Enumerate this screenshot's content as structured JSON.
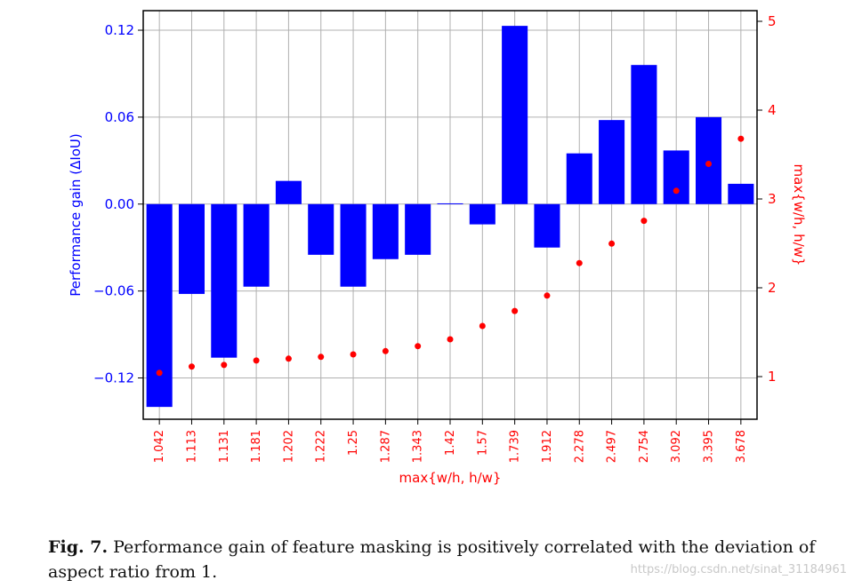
{
  "chart_data": {
    "type": "bar",
    "categories": [
      "1.042",
      "1.113",
      "1.131",
      "1.181",
      "1.202",
      "1.222",
      "1.25",
      "1.287",
      "1.343",
      "1.42",
      "1.57",
      "1.739",
      "1.912",
      "2.278",
      "2.497",
      "2.754",
      "3.092",
      "3.395",
      "3.678"
    ],
    "series": [
      {
        "name": "Performance gain (ΔIoU)",
        "type": "bar",
        "axis": "left",
        "color": "#0000ff",
        "values": [
          -0.14,
          -0.062,
          -0.106,
          -0.057,
          0.016,
          -0.035,
          -0.057,
          -0.038,
          -0.035,
          0.0005,
          -0.014,
          0.123,
          -0.03,
          0.035,
          0.058,
          0.096,
          0.037,
          0.06,
          0.014
        ]
      },
      {
        "name": "max{w/h, h/w}",
        "type": "scatter",
        "axis": "right",
        "color": "#ff0000",
        "values": [
          1.042,
          1.113,
          1.131,
          1.181,
          1.202,
          1.222,
          1.25,
          1.287,
          1.343,
          1.42,
          1.57,
          1.739,
          1.912,
          2.278,
          2.497,
          2.754,
          3.092,
          3.395,
          3.678
        ]
      }
    ],
    "ylabel": "Performance gain (ΔIoU)",
    "y2label": "max{w/h, h/w}",
    "xlabel": "max{w/h, h/w}",
    "ylim": [
      -0.1485,
      0.1335
    ],
    "y2lim": [
      0.52,
      5.12
    ],
    "yticks": [
      -0.12,
      -0.06,
      0.0,
      0.06,
      0.12
    ],
    "ytick_labels": [
      "−0.12",
      "−0.06",
      "0.00",
      "0.06",
      "0.12"
    ],
    "y2ticks": [
      1,
      2,
      3,
      4,
      5
    ],
    "y2tick_labels": [
      "1",
      "2",
      "3",
      "4",
      "5"
    ],
    "grid": true
  },
  "caption": {
    "label": "Fig. 7.",
    "text": " Performance gain of feature masking is positively correlated with the deviation of aspect ratio from 1."
  },
  "watermark": "https://blog.csdn.net/sinat_31184961"
}
